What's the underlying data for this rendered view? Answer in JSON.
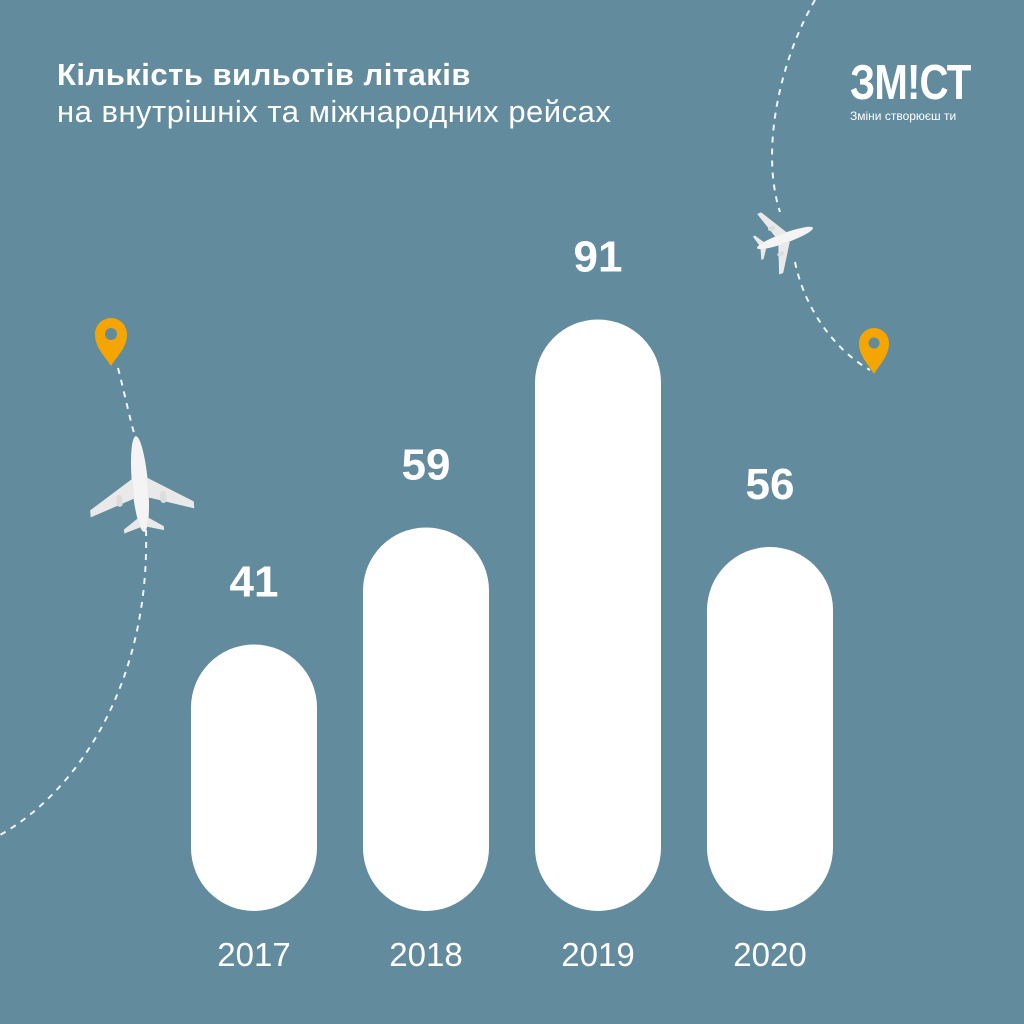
{
  "colors": {
    "background": "#628b9e",
    "bar": "#ffffff",
    "text": "#ffffff",
    "pin": "#f5a500",
    "plane": "#f2f2f2",
    "logo_accent": "#1fae7d"
  },
  "title": {
    "line1": "Кількість вильотів літаків",
    "line2": "на внутрішніх та міжнародних рейсах"
  },
  "logo": {
    "word": "ЗМ!СТ",
    "slogan": "Зміни створюєш ти"
  },
  "decorations": {
    "icons": [
      "location-pin-icon",
      "airplane-icon"
    ]
  },
  "chart_data": {
    "type": "bar",
    "title": "Кількість вильотів літаків на внутрішніх та міжнародних рейсах",
    "categories": [
      "2017",
      "2018",
      "2019",
      "2020"
    ],
    "values": [
      41,
      59,
      91,
      56
    ],
    "xlabel": "",
    "ylabel": "",
    "grid": false,
    "legend": "none"
  }
}
